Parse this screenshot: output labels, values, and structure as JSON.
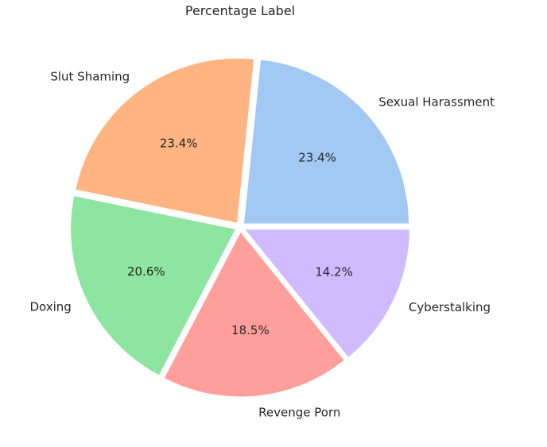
{
  "chart_data": {
    "type": "pie",
    "title": "Percentage Label",
    "categories": [
      "Sexual Harassment",
      "Slut Shaming",
      "Doxing",
      "Revenge Porn",
      "Cyberstalking"
    ],
    "values": [
      23.4,
      23.4,
      20.6,
      18.5,
      14.2
    ],
    "percent_labels": [
      "23.4%",
      "23.4%",
      "20.6%",
      "18.5%",
      "14.2%"
    ],
    "colors": [
      "#a1c9f4",
      "#ffb482",
      "#8de5a1",
      "#ff9f9b",
      "#d0bbff"
    ],
    "start_angle_deg": 0,
    "direction": "counterclockwise",
    "exploded": true,
    "legend": "none"
  }
}
